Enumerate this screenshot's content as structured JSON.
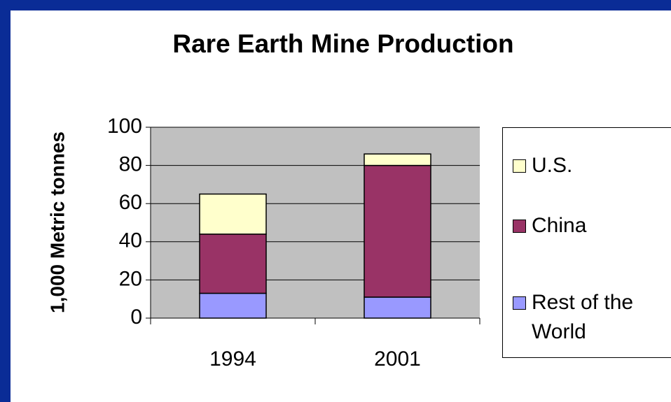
{
  "chart_data": {
    "type": "stacked_bar",
    "title": "Rare Earth Mine Production",
    "y_label": "1,000 Metric tonnes",
    "categories": [
      "1994",
      "2001"
    ],
    "series": [
      {
        "name": "Rest of the World",
        "color": "#9999ff",
        "values": [
          13,
          11
        ]
      },
      {
        "name": "China",
        "color": "#993366",
        "values": [
          31,
          69
        ]
      },
      {
        "name": "U.S.",
        "color": "#ffffcc",
        "values": [
          21,
          6
        ]
      }
    ],
    "ylim": [
      0,
      100
    ],
    "yticks": [
      0,
      20,
      40,
      60,
      80,
      100
    ],
    "grid": true,
    "legend": "right"
  }
}
